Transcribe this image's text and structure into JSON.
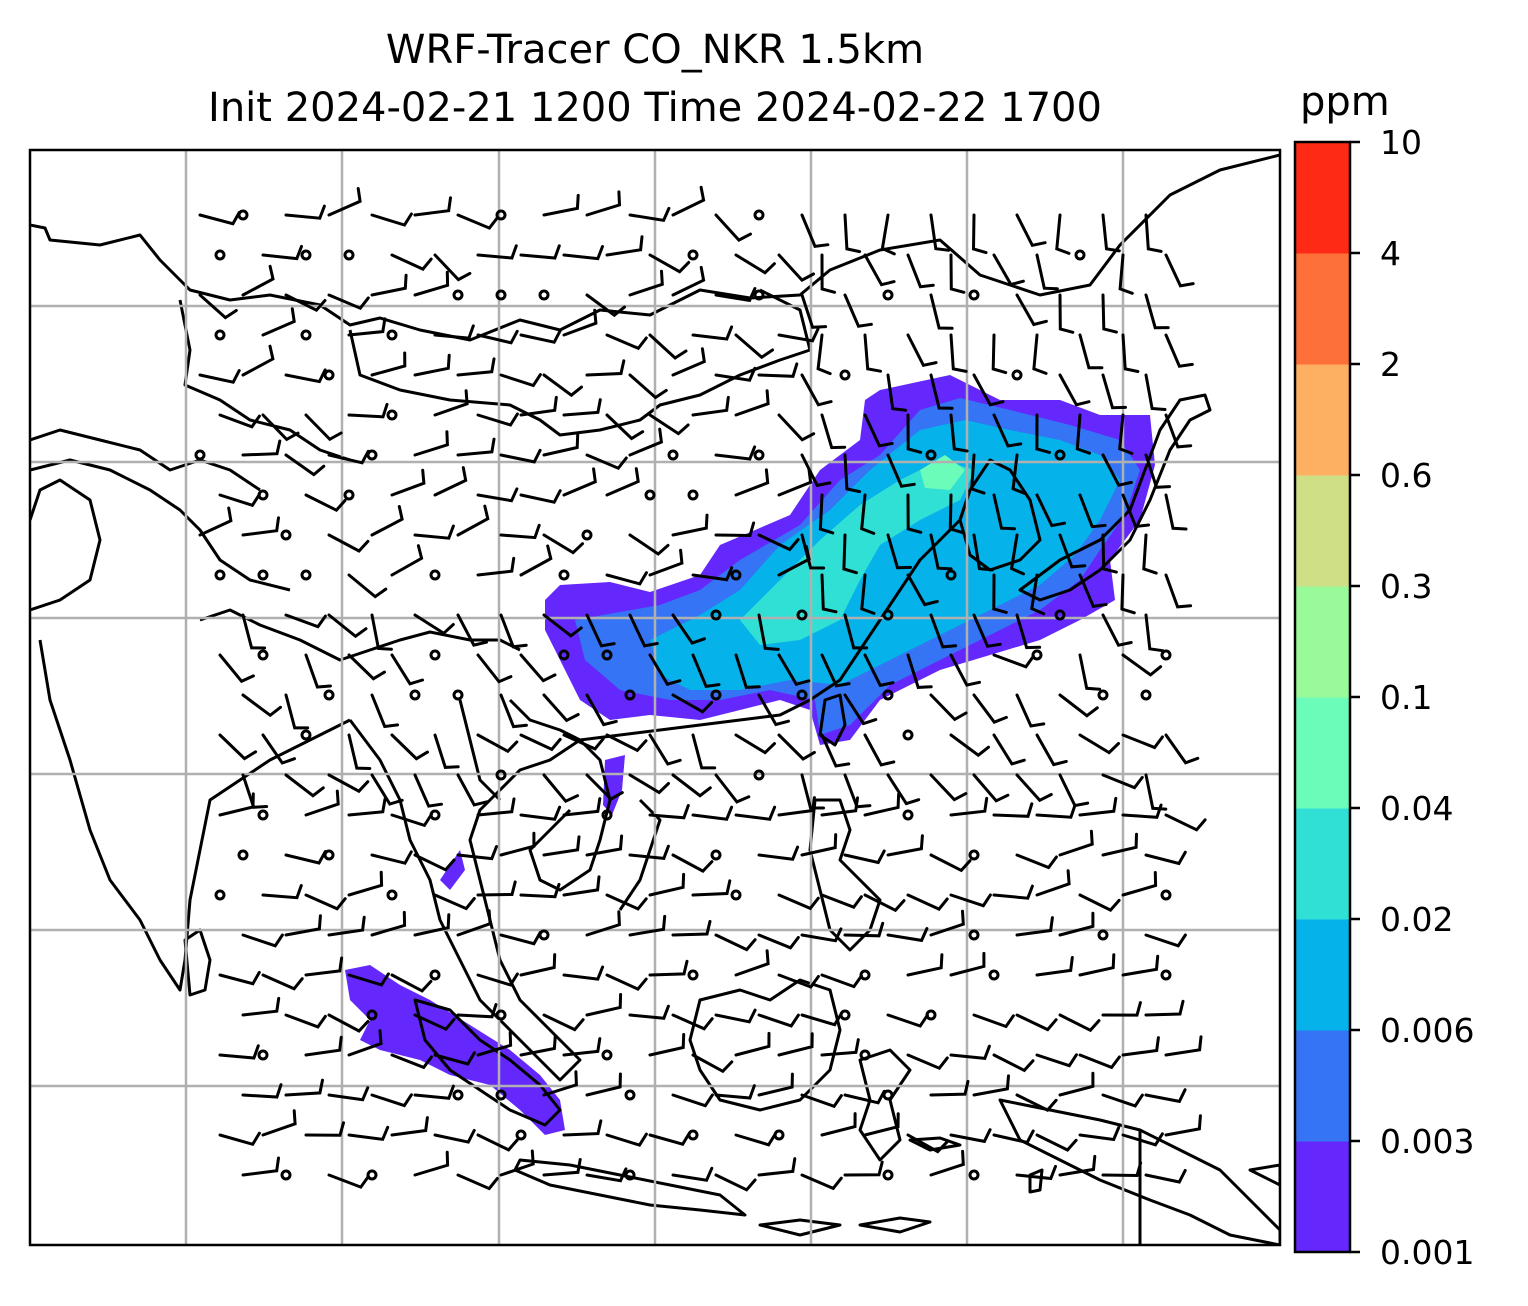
{
  "title": {
    "line1": "WRF-Tracer CO_NKR 1.5km",
    "line2": "Init 2024-02-21 1200 Time 2024-02-22 1700"
  },
  "colorbar": {
    "unit": "ppm",
    "levels": [
      {
        "label": "0.001",
        "color": "#6428fc"
      },
      {
        "label": "0.003",
        "color": "#3474f5"
      },
      {
        "label": "0.006",
        "color": "#05b2ea"
      },
      {
        "label": "0.02",
        "color": "#30e0d5"
      },
      {
        "label": "0.04",
        "color": "#6cfcba"
      },
      {
        "label": "0.1",
        "color": "#99fa99"
      },
      {
        "label": "0.3",
        "color": "#cedf86"
      },
      {
        "label": "0.6",
        "color": "#feb062"
      },
      {
        "label": "2",
        "color": "#fe7039"
      },
      {
        "label": "4",
        "color": "#fe2a15"
      },
      {
        "label": "10",
        "color": null
      }
    ]
  },
  "map": {
    "gridlines": true,
    "features": [
      "coastlines",
      "country borders",
      "wind barbs",
      "tracer concentration fill"
    ]
  }
}
